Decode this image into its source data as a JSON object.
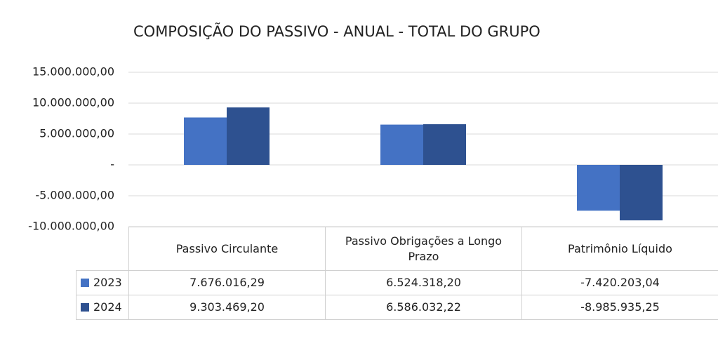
{
  "chart_data": {
    "type": "bar",
    "title": "COMPOSIÇÃO DO PASSIVO - ANUAL - TOTAL DO GRUPO",
    "categories": [
      "Passivo Circulante",
      "Passivo Obrigações a Longo Prazo",
      "Patrimônio Líquido"
    ],
    "series": [
      {
        "name": "2023",
        "color": "#4472c4",
        "values": [
          7676016.29,
          6524318.2,
          -7420203.04
        ],
        "value_labels": [
          "7.676.016,29",
          "6.524.318,20",
          "-7.420.203,04"
        ]
      },
      {
        "name": "2024",
        "color": "#2e5190",
        "values": [
          9303469.2,
          6586032.22,
          -8985935.25
        ],
        "value_labels": [
          "9.303.469,20",
          "6.586.032,22",
          "-8.985.935,25"
        ]
      }
    ],
    "ylim": [
      -10000000,
      15000000
    ],
    "yticks": [
      {
        "value": -10000000,
        "label": "-10.000.000,00"
      },
      {
        "value": -5000000,
        "label": "-5.000.000,00"
      },
      {
        "value": 0,
        "label": "-"
      },
      {
        "value": 5000000,
        "label": "5.000.000,00"
      },
      {
        "value": 10000000,
        "label": "10.000.000,00"
      },
      {
        "value": 15000000,
        "label": "15.000.000,00"
      }
    ],
    "grid": true
  }
}
